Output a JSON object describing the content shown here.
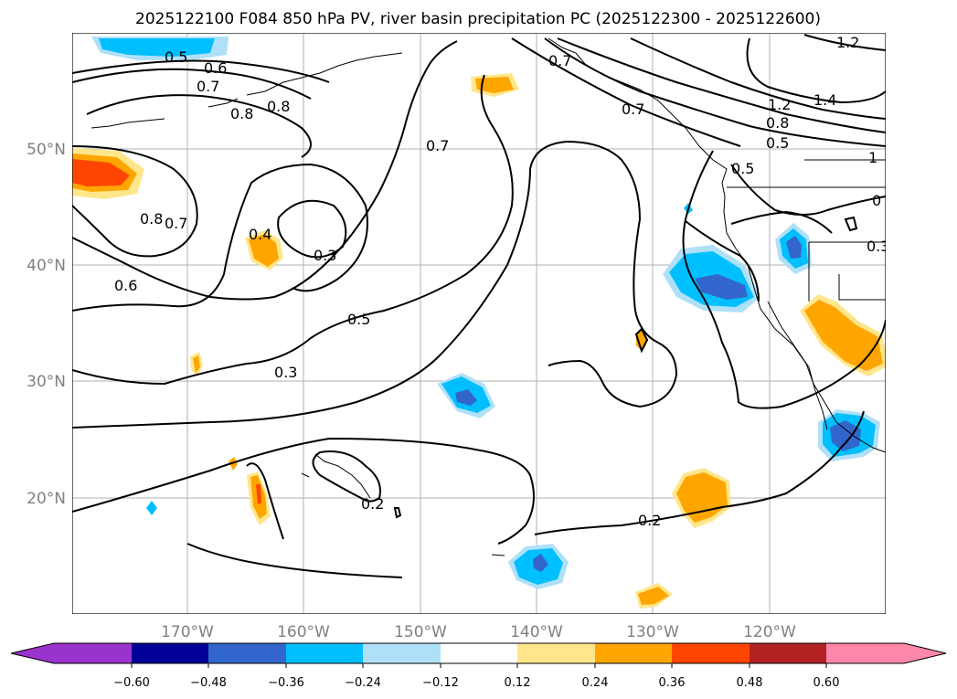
{
  "title": "2025122100 F084 850 hPa PV, river basin precipitation PC (2025122300 - 2025122600)",
  "lat_labels": [
    "50°N",
    "40°N",
    "30°N",
    "20°N"
  ],
  "lon_labels": [
    "170°W",
    "160°W",
    "150°W",
    "140°W",
    "130°W",
    "120°W"
  ],
  "colorbar": {
    "colors": [
      "#9933cc",
      "#000099",
      "#3366cc",
      "#00bfff",
      "#b0e0f8",
      "#ffffff",
      "#ffe68a",
      "#ffa500",
      "#ff4500",
      "#b22222",
      "#ff88aa"
    ],
    "tick_labels": [
      "−0.60",
      "−0.48",
      "−0.36",
      "−0.24",
      "−0.12",
      "0.12",
      "0.24",
      "0.36",
      "0.48",
      "0.60"
    ]
  },
  "contour_labels": [
    "0.5",
    "0.6",
    "0.7",
    "0.8",
    "0.8",
    "0.8",
    "0.7",
    "0.7",
    "0.6",
    "0.4",
    "0.3",
    "0.5",
    "0.3",
    "0.2",
    "0.2",
    "0.7",
    "0.7",
    "1.2",
    "1.2",
    "1.4",
    "0.8",
    "0.5",
    "1",
    "0.5",
    "0",
    "0.3"
  ]
}
